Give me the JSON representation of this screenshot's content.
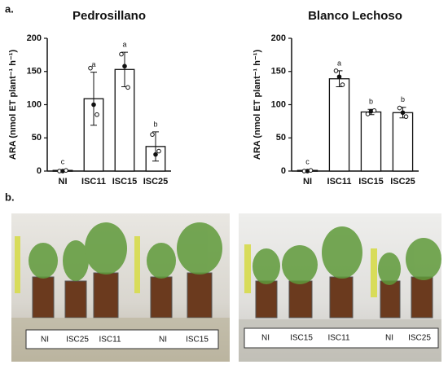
{
  "panel_labels": [
    "a.",
    "b."
  ],
  "chart_data": [
    {
      "type": "bar",
      "title": "Pedrosillano",
      "y_label": "ARA (nmol ET plant⁻¹ h⁻¹)",
      "categories": [
        "NI",
        "ISC11",
        "ISC15",
        "ISC25"
      ],
      "values": [
        1,
        109,
        153,
        37
      ],
      "errors": [
        1,
        40,
        26,
        22
      ],
      "points": [
        [
          0,
          0,
          1
        ],
        [
          155,
          100,
          85
        ],
        [
          176,
          158,
          126
        ],
        [
          55,
          25,
          30
        ]
      ],
      "annotations": [
        "c",
        "a",
        "a",
        "b"
      ],
      "ylim": [
        0,
        200
      ],
      "yticks": [
        0,
        50,
        100,
        150,
        200
      ],
      "color": "#ffffff"
    },
    {
      "type": "bar",
      "title": "Blanco Lechoso",
      "y_label": "ARA (nmol ET plant⁻¹ h⁻¹)",
      "categories": [
        "NI",
        "ISC11",
        "ISC15",
        "ISC25"
      ],
      "values": [
        1,
        139,
        89,
        88
      ],
      "errors": [
        1,
        12,
        4,
        8
      ],
      "points": [
        [
          0,
          0,
          1
        ],
        [
          151,
          142,
          130
        ],
        [
          86,
          90,
          91
        ],
        [
          95,
          88,
          82
        ]
      ],
      "annotations": [
        "c",
        "a",
        "b",
        "b"
      ],
      "ylim": [
        0,
        200
      ],
      "yticks": [
        0,
        50,
        100,
        150,
        200
      ],
      "color": "#ffffff"
    }
  ],
  "photos": [
    {
      "labels": [
        "NI",
        "ISC25",
        "ISC11",
        "NI",
        "ISC15"
      ]
    },
    {
      "labels": [
        "NI",
        "ISC15",
        "ISC11",
        "NI",
        "ISC25"
      ]
    }
  ]
}
